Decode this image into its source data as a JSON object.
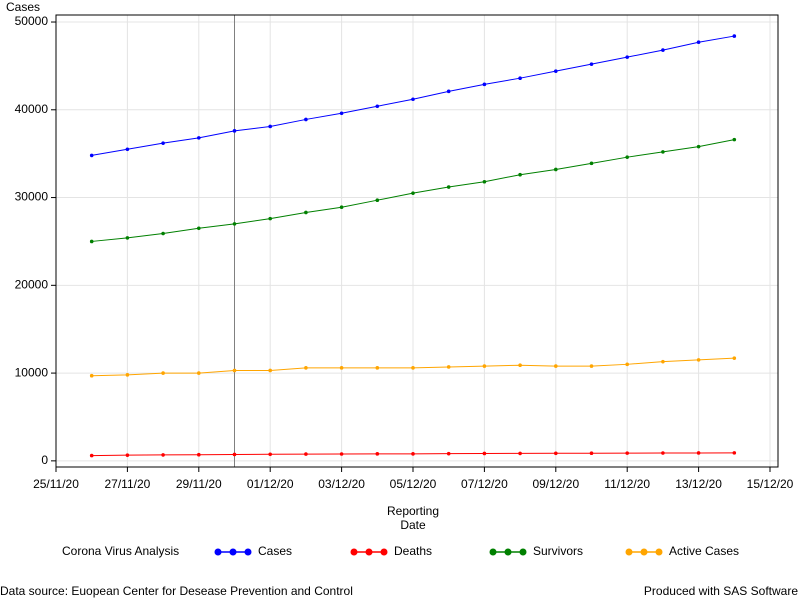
{
  "chart_data": {
    "type": "line",
    "y_label": "Cases",
    "x_label": [
      "Reporting",
      "Date"
    ],
    "x": [
      "26/11/20",
      "27/11/20",
      "28/11/20",
      "29/11/20",
      "30/11/20",
      "01/12/20",
      "02/12/20",
      "03/12/20",
      "04/12/20",
      "05/12/20",
      "06/12/20",
      "07/12/20",
      "08/12/20",
      "09/12/20",
      "10/12/20",
      "11/12/20",
      "12/12/20",
      "13/12/20",
      "14/12/20"
    ],
    "series": [
      {
        "name": "Cases",
        "color": "#0000ff",
        "values": [
          34800,
          35500,
          36200,
          36800,
          37600,
          38100,
          38900,
          39600,
          40400,
          41200,
          42100,
          42900,
          43600,
          44400,
          45200,
          46000,
          46800,
          47700,
          48400
        ]
      },
      {
        "name": "Deaths",
        "color": "#ff0000",
        "values": [
          600,
          650,
          680,
          700,
          730,
          750,
          770,
          780,
          800,
          800,
          820,
          840,
          850,
          860,
          870,
          880,
          890,
          900,
          910
        ]
      },
      {
        "name": "Survivors",
        "color": "#008000",
        "values": [
          25000,
          25400,
          25900,
          26500,
          27000,
          27600,
          28300,
          28900,
          29700,
          30500,
          31200,
          31800,
          32600,
          33200,
          33900,
          34600,
          35200,
          35800,
          36600
        ]
      },
      {
        "name": "Active Cases",
        "color": "#ffa500",
        "values": [
          9700,
          9800,
          10000,
          10000,
          10300,
          10300,
          10600,
          10600,
          10600,
          10600,
          10700,
          10800,
          10900,
          10800,
          10800,
          11000,
          11300,
          11500,
          11700
        ]
      }
    ],
    "xlim": [
      "25/11/20",
      "15/12/20"
    ],
    "xticks": [
      "25/11/20",
      "27/11/20",
      "29/11/20",
      "01/12/20",
      "03/12/20",
      "05/12/20",
      "07/12/20",
      "09/12/20",
      "11/12/20",
      "13/12/20",
      "15/12/20"
    ],
    "ylim": [
      -700,
      50800
    ],
    "yticks": [
      0,
      10000,
      20000,
      30000,
      40000,
      50000
    ],
    "reference_line_x": "30/11/20",
    "grid": true,
    "legend_title": "Corona Virus Analysis",
    "footnote_left": "Data source: Euopean Center for Desease Prevention and Control",
    "footnote_right": "Produced with SAS Software"
  }
}
